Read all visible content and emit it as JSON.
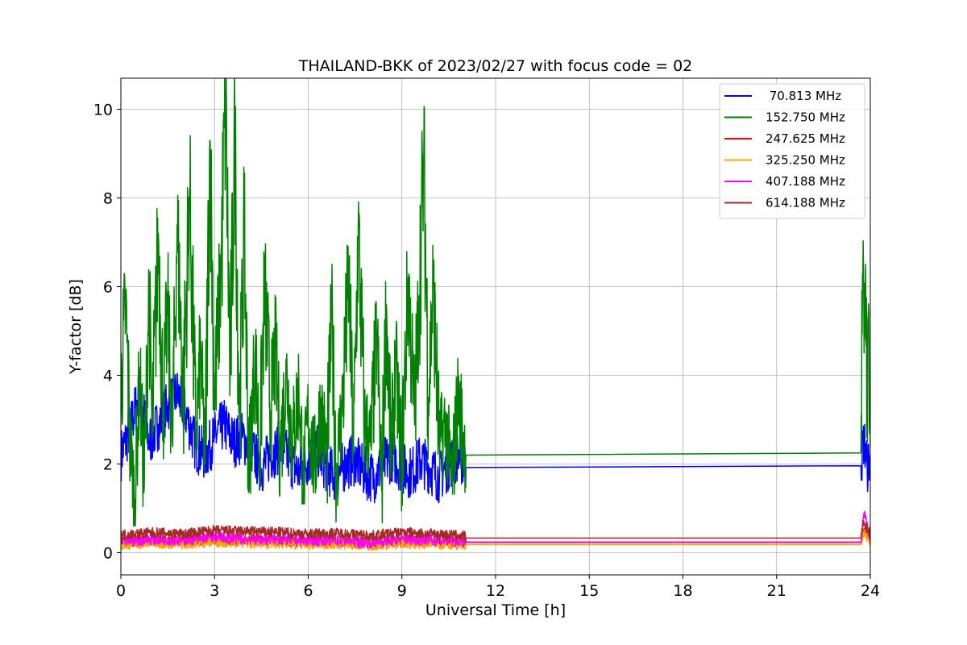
{
  "chart_data": {
    "type": "line",
    "title": "THAILAND-BKK of 2023/02/27 with focus code = 02",
    "xlabel": "Universal Time [h]",
    "ylabel": "Y-factor [dB]",
    "xlim": [
      0,
      24
    ],
    "ylim": [
      -0.5,
      10.7
    ],
    "xticks": [
      0,
      3,
      6,
      9,
      12,
      15,
      18,
      21,
      24
    ],
    "yticks": [
      0,
      2,
      4,
      6,
      8,
      10
    ],
    "grid": true,
    "legend_position": "top-right",
    "series": [
      {
        "name": " 70.813 MHz",
        "color": "#0000ff",
        "points": [
          [
            0,
            2.2
          ],
          [
            0.3,
            2.8
          ],
          [
            0.6,
            3.6
          ],
          [
            0.9,
            2.5
          ],
          [
            1.2,
            2.9
          ],
          [
            1.5,
            3.3
          ],
          [
            1.8,
            3.6
          ],
          [
            2.1,
            3.1
          ],
          [
            2.4,
            2.4
          ],
          [
            2.7,
            2.2
          ],
          [
            3.0,
            2.6
          ],
          [
            3.3,
            2.9
          ],
          [
            3.6,
            2.5
          ],
          [
            3.9,
            2.6
          ],
          [
            4.2,
            2.3
          ],
          [
            4.5,
            1.9
          ],
          [
            4.8,
            2.2
          ],
          [
            5.1,
            2.4
          ],
          [
            5.4,
            2.1
          ],
          [
            5.7,
            1.8
          ],
          [
            6.0,
            2.1
          ],
          [
            6.3,
            2.3
          ],
          [
            6.6,
            1.9
          ],
          [
            6.9,
            1.7
          ],
          [
            7.2,
            2.0
          ],
          [
            7.5,
            2.1
          ],
          [
            7.8,
            1.8
          ],
          [
            8.1,
            1.7
          ],
          [
            8.4,
            2.0
          ],
          [
            8.7,
            2.2
          ],
          [
            9.0,
            1.9
          ],
          [
            9.3,
            1.8
          ],
          [
            9.6,
            2.1
          ],
          [
            9.9,
            1.9
          ],
          [
            10.2,
            1.7
          ],
          [
            10.5,
            2.0
          ],
          [
            10.8,
            2.2
          ],
          [
            11.0,
            2.0
          ],
          [
            11.05,
            1.92
          ],
          [
            23.7,
            1.96
          ],
          [
            23.8,
            2.6
          ],
          [
            23.9,
            1.9
          ],
          [
            24,
            2.2
          ]
        ]
      },
      {
        "name": "152.750 MHz",
        "color": "#008000",
        "points": [
          [
            0,
            3.6
          ],
          [
            0.15,
            5.6
          ],
          [
            0.3,
            2.5
          ],
          [
            0.45,
            1.2
          ],
          [
            0.6,
            4.0
          ],
          [
            0.75,
            1.5
          ],
          [
            0.9,
            6.0
          ],
          [
            1.0,
            2.6
          ],
          [
            1.2,
            7.2
          ],
          [
            1.35,
            3.3
          ],
          [
            1.5,
            5.5
          ],
          [
            1.65,
            2.5
          ],
          [
            1.8,
            7.4
          ],
          [
            2.0,
            3.5
          ],
          [
            2.2,
            8.2
          ],
          [
            2.4,
            2.5
          ],
          [
            2.55,
            4.5
          ],
          [
            2.7,
            2.0
          ],
          [
            2.85,
            9.3
          ],
          [
            3.0,
            3.5
          ],
          [
            3.2,
            6.2
          ],
          [
            3.35,
            10.1
          ],
          [
            3.5,
            4.0
          ],
          [
            3.65,
            9.5
          ],
          [
            3.8,
            3.0
          ],
          [
            3.95,
            7.2
          ],
          [
            4.1,
            1.9
          ],
          [
            4.3,
            4.5
          ],
          [
            4.45,
            2.2
          ],
          [
            4.6,
            6.0
          ],
          [
            4.8,
            3.2
          ],
          [
            4.95,
            4.6
          ],
          [
            5.1,
            2.3
          ],
          [
            5.3,
            4.0
          ],
          [
            5.5,
            2.5
          ],
          [
            5.7,
            3.7
          ],
          [
            5.85,
            1.6
          ],
          [
            6.0,
            3.1
          ],
          [
            6.2,
            1.9
          ],
          [
            6.4,
            3.3
          ],
          [
            6.6,
            2.2
          ],
          [
            6.75,
            5.3
          ],
          [
            6.9,
            1.8
          ],
          [
            7.1,
            3.4
          ],
          [
            7.3,
            6.2
          ],
          [
            7.45,
            2.2
          ],
          [
            7.6,
            7.3
          ],
          [
            7.8,
            3.0
          ],
          [
            8.0,
            2.4
          ],
          [
            8.2,
            5.0
          ],
          [
            8.35,
            1.4
          ],
          [
            8.5,
            5.6
          ],
          [
            8.65,
            2.2
          ],
          [
            8.8,
            4.2
          ],
          [
            9.0,
            2.0
          ],
          [
            9.2,
            6.2
          ],
          [
            9.4,
            3.0
          ],
          [
            9.55,
            5.8
          ],
          [
            9.7,
            8.9
          ],
          [
            9.85,
            3.5
          ],
          [
            10.0,
            6.0
          ],
          [
            10.2,
            2.4
          ],
          [
            10.4,
            2.9
          ],
          [
            10.6,
            1.6
          ],
          [
            10.8,
            3.5
          ],
          [
            11.0,
            2.5
          ],
          [
            11.05,
            2.2
          ],
          [
            23.7,
            2.25
          ],
          [
            23.75,
            6.3
          ],
          [
            23.8,
            4.5
          ],
          [
            23.85,
            6.5
          ],
          [
            23.9,
            3.2
          ],
          [
            23.95,
            5.4
          ],
          [
            24,
            2.4
          ]
        ]
      },
      {
        "name": "247.625 MHz",
        "color": "#ff0000",
        "points": [
          [
            0,
            0.22
          ],
          [
            1,
            0.28
          ],
          [
            2,
            0.25
          ],
          [
            3,
            0.3
          ],
          [
            4,
            0.28
          ],
          [
            5,
            0.26
          ],
          [
            6,
            0.24
          ],
          [
            7,
            0.25
          ],
          [
            8,
            0.2
          ],
          [
            9,
            0.26
          ],
          [
            10,
            0.25
          ],
          [
            11,
            0.24
          ],
          [
            11.05,
            0.23
          ],
          [
            23.7,
            0.23
          ],
          [
            23.8,
            0.55
          ],
          [
            24,
            0.25
          ]
        ]
      },
      {
        "name": "325.250 MHz",
        "color": "#ffa500",
        "points": [
          [
            0,
            0.18
          ],
          [
            1,
            0.22
          ],
          [
            2,
            0.2
          ],
          [
            3,
            0.25
          ],
          [
            4,
            0.22
          ],
          [
            5,
            0.21
          ],
          [
            6,
            0.19
          ],
          [
            7,
            0.2
          ],
          [
            8,
            0.16
          ],
          [
            9,
            0.21
          ],
          [
            10,
            0.2
          ],
          [
            11,
            0.19
          ],
          [
            11.05,
            0.18
          ],
          [
            23.7,
            0.18
          ],
          [
            23.8,
            0.45
          ],
          [
            24,
            0.2
          ]
        ]
      },
      {
        "name": "407.188 MHz",
        "color": "#ff00ff",
        "points": [
          [
            0,
            0.25
          ],
          [
            1,
            0.3
          ],
          [
            2,
            0.28
          ],
          [
            3,
            0.35
          ],
          [
            4,
            0.3
          ],
          [
            5,
            0.3
          ],
          [
            6,
            0.27
          ],
          [
            7,
            0.28
          ],
          [
            8,
            0.22
          ],
          [
            9,
            0.3
          ],
          [
            10,
            0.28
          ],
          [
            11,
            0.25
          ],
          [
            11.05,
            0.24
          ],
          [
            23.7,
            0.24
          ],
          [
            23.8,
            0.9
          ],
          [
            24,
            0.3
          ]
        ]
      },
      {
        "name": "614.188 MHz",
        "color": "#a52a2a",
        "points": [
          [
            0,
            0.4
          ],
          [
            1,
            0.45
          ],
          [
            2,
            0.42
          ],
          [
            3,
            0.5
          ],
          [
            4,
            0.48
          ],
          [
            5,
            0.46
          ],
          [
            6,
            0.42
          ],
          [
            7,
            0.44
          ],
          [
            8,
            0.38
          ],
          [
            9,
            0.46
          ],
          [
            10,
            0.42
          ],
          [
            11,
            0.38
          ],
          [
            11.05,
            0.33
          ],
          [
            23.7,
            0.33
          ],
          [
            23.8,
            0.7
          ],
          [
            24,
            0.4
          ]
        ]
      }
    ]
  }
}
